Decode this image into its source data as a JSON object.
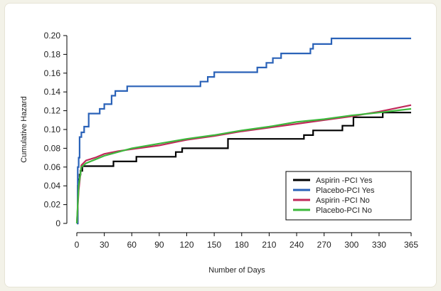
{
  "chart_data": {
    "type": "line",
    "step": true,
    "xlabel": "Number of Days",
    "ylabel": "Cumulative Hazard",
    "xlim": [
      0,
      365
    ],
    "ylim": [
      0,
      0.2
    ],
    "xticks": [
      0,
      30,
      60,
      90,
      120,
      150,
      180,
      210,
      240,
      270,
      300,
      330,
      365
    ],
    "yticks": [
      0,
      0.02,
      0.04,
      0.06,
      0.08,
      0.1,
      0.12,
      0.14,
      0.16,
      0.18,
      0.2
    ],
    "ytick_labels": [
      "0",
      "0.02",
      "0.04",
      "0.06",
      "0.08",
      "0.10",
      "0.12",
      "0.14",
      "0.16",
      "0.18",
      "0.20"
    ],
    "legend_position": "bottom-right",
    "series": [
      {
        "name": "Aspirin -PCI Yes",
        "color": "#000000",
        "x": [
          0,
          1,
          1,
          2,
          2,
          3,
          3,
          4,
          4,
          6,
          6,
          40,
          40,
          65,
          65,
          108,
          108,
          115,
          115,
          165,
          165,
          248,
          248,
          258,
          258,
          290,
          290,
          302,
          302,
          334,
          334,
          365
        ],
        "y": [
          0,
          0,
          0.04,
          0.04,
          0.047,
          0.047,
          0.052,
          0.052,
          0.056,
          0.056,
          0.061,
          0.061,
          0.066,
          0.066,
          0.071,
          0.071,
          0.076,
          0.076,
          0.08,
          0.08,
          0.09,
          0.09,
          0.094,
          0.094,
          0.099,
          0.099,
          0.104,
          0.104,
          0.113,
          0.113,
          0.118,
          0.118
        ]
      },
      {
        "name": "Placebo-PCI Yes",
        "color": "#2a62b8",
        "x": [
          0,
          1,
          1,
          2,
          2,
          3,
          3,
          5,
          5,
          8,
          8,
          13,
          13,
          25,
          25,
          30,
          30,
          38,
          38,
          42,
          42,
          46,
          46,
          55,
          55,
          135,
          135,
          143,
          143,
          150,
          150,
          197,
          197,
          207,
          207,
          214,
          214,
          223,
          223,
          255,
          255,
          258,
          258,
          278,
          278,
          365
        ],
        "y": [
          0,
          0,
          0.06,
          0.06,
          0.07,
          0.07,
          0.092,
          0.092,
          0.097,
          0.097,
          0.103,
          0.103,
          0.117,
          0.117,
          0.122,
          0.122,
          0.127,
          0.127,
          0.136,
          0.136,
          0.141,
          0.141,
          0.141,
          0.141,
          0.146,
          0.146,
          0.151,
          0.151,
          0.156,
          0.156,
          0.161,
          0.161,
          0.166,
          0.166,
          0.171,
          0.171,
          0.176,
          0.176,
          0.181,
          0.181,
          0.186,
          0.186,
          0.191,
          0.191,
          0.197,
          0.197
        ]
      },
      {
        "name": "Aspirin -PCI No",
        "color": "#c0295a",
        "x": [
          0,
          2,
          5,
          10,
          20,
          30,
          45,
          60,
          90,
          120,
          150,
          180,
          210,
          240,
          270,
          300,
          330,
          365
        ],
        "y": [
          0,
          0.035,
          0.062,
          0.067,
          0.07,
          0.074,
          0.077,
          0.079,
          0.083,
          0.089,
          0.093,
          0.098,
          0.102,
          0.106,
          0.11,
          0.114,
          0.119,
          0.126
        ]
      },
      {
        "name": "Placebo-PCI No",
        "color": "#3cb83c",
        "x": [
          0,
          2,
          5,
          10,
          20,
          30,
          45,
          60,
          90,
          120,
          150,
          180,
          210,
          240,
          270,
          300,
          330,
          365
        ],
        "y": [
          0,
          0.04,
          0.06,
          0.064,
          0.068,
          0.072,
          0.076,
          0.08,
          0.085,
          0.09,
          0.094,
          0.099,
          0.103,
          0.108,
          0.111,
          0.115,
          0.118,
          0.122
        ]
      }
    ]
  }
}
